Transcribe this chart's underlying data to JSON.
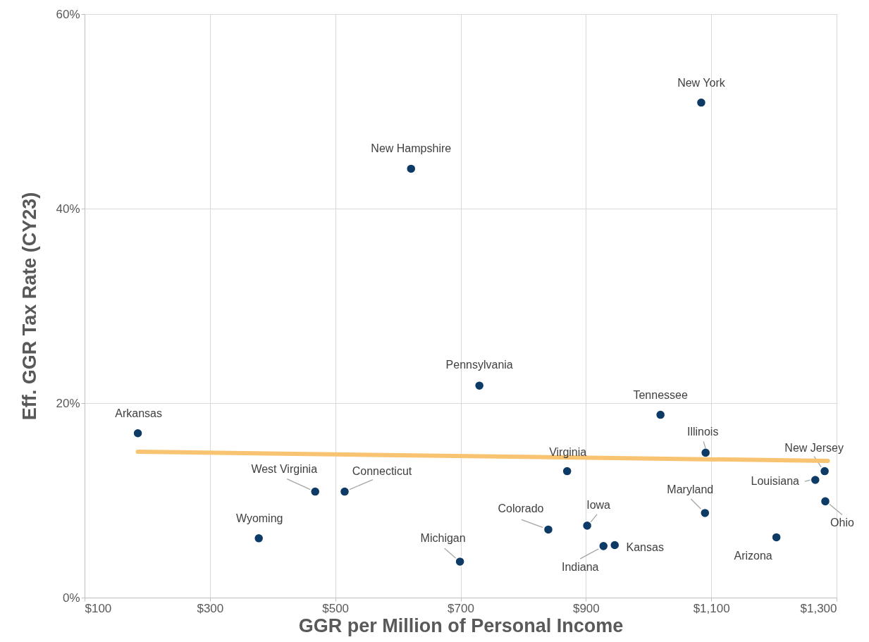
{
  "chart_data": {
    "type": "scatter",
    "xlabel": "GGR per Million of Personal Income",
    "ylabel": "Eff. GGR Tax Rate (CY23)",
    "xlim": [
      100,
      1300
    ],
    "ylim": [
      0,
      60
    ],
    "xticks": [
      {
        "value": 100,
        "label": "$100"
      },
      {
        "value": 300,
        "label": "$300"
      },
      {
        "value": 500,
        "label": "$500"
      },
      {
        "value": 700,
        "label": "$700"
      },
      {
        "value": 900,
        "label": "$900"
      },
      {
        "value": 1100,
        "label": "$1,100"
      },
      {
        "value": 1300,
        "label": "$1,300"
      }
    ],
    "yticks": [
      {
        "value": 0,
        "label": "0%"
      },
      {
        "value": 20,
        "label": "20%"
      },
      {
        "value": 40,
        "label": "40%"
      },
      {
        "value": 60,
        "label": "60%"
      }
    ],
    "grid": true,
    "marker": "circle",
    "series": [
      {
        "color": "#0d3b66",
        "x": [
          185,
          378,
          468,
          515,
          621,
          699,
          730,
          840,
          870,
          902,
          928,
          946,
          1019,
          1084,
          1091,
          1090,
          1204,
          1266,
          1281,
          1282
        ],
        "values": [
          16.9,
          6.1,
          10.9,
          10.9,
          44.1,
          3.7,
          21.8,
          7.0,
          13.0,
          7.4,
          5.3,
          5.4,
          18.8,
          50.9,
          14.9,
          8.7,
          6.2,
          12.1,
          13.0,
          9.9
        ]
      },
      {
        "type": "line",
        "marker": "none",
        "color": "#f8c471",
        "x": [
          185,
          1286
        ],
        "values": [
          15.0,
          14.06
        ]
      }
    ],
    "annotations": [
      {
        "text": "Arkansas",
        "x": 185,
        "y": 16.9
      },
      {
        "text": "Wyoming",
        "x": 378,
        "y": 6.1
      },
      {
        "text": "West Virginia",
        "x": 468,
        "y": 10.9
      },
      {
        "text": "Connecticut",
        "x": 515,
        "y": 10.9
      },
      {
        "text": "New Hampshire",
        "x": 621,
        "y": 44.1
      },
      {
        "text": "Michigan",
        "x": 699,
        "y": 3.7
      },
      {
        "text": "Pennsylvania",
        "x": 730,
        "y": 21.8
      },
      {
        "text": "Colorado",
        "x": 840,
        "y": 7.0
      },
      {
        "text": "Virginia",
        "x": 870,
        "y": 13.0
      },
      {
        "text": "Iowa",
        "x": 902,
        "y": 7.4
      },
      {
        "text": "Indiana",
        "x": 928,
        "y": 5.3
      },
      {
        "text": "Kansas",
        "x": 946,
        "y": 5.4
      },
      {
        "text": "Tennessee",
        "x": 1019,
        "y": 18.8
      },
      {
        "text": "New York",
        "x": 1084,
        "y": 50.9
      },
      {
        "text": "Illinois",
        "x": 1091,
        "y": 14.9
      },
      {
        "text": "Maryland",
        "x": 1090,
        "y": 8.7
      },
      {
        "text": "Arizona",
        "x": 1204,
        "y": 6.2
      },
      {
        "text": "Louisiana",
        "x": 1266,
        "y": 12.1
      },
      {
        "text": "New Jersey",
        "x": 1281,
        "y": 13.0
      },
      {
        "text": "Ohio",
        "x": 1282,
        "y": 9.9
      }
    ]
  }
}
